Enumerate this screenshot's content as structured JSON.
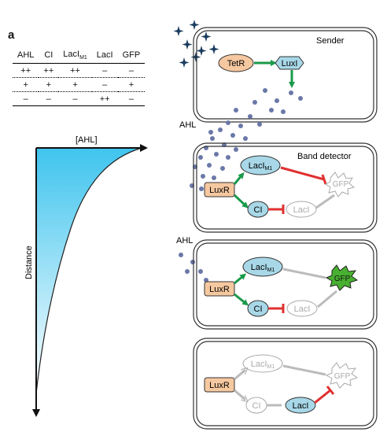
{
  "panel_label": "a",
  "truth_table": {
    "headers": [
      {
        "main": "AHL",
        "sub": ""
      },
      {
        "main": "CI",
        "sub": ""
      },
      {
        "main": "LacI",
        "sub": "M1"
      },
      {
        "main": "LacI",
        "sub": ""
      },
      {
        "main": "GFP",
        "sub": ""
      }
    ],
    "rows": [
      [
        "++",
        "++",
        "++",
        "–",
        "–"
      ],
      [
        "+",
        "+",
        "+",
        "–",
        "+"
      ],
      [
        "–",
        "–",
        "–",
        "++",
        "–"
      ]
    ]
  },
  "gradient_plot": {
    "x_label": "[AHL]",
    "y_label": "Distance",
    "fill_color": "#3fc4ee"
  },
  "cells": {
    "sender": {
      "title": "Sender",
      "tetr": "TetR",
      "luxi": "LuxI"
    },
    "band_detector": {
      "title": "Band detector",
      "laci_m1": "LacI",
      "laci_m1_sub": "M1",
      "luxr": "LuxR",
      "gfp": "GFP",
      "ci": "CI",
      "laci": "LacI"
    },
    "high_ahl": {
      "laci_m1": "LacI",
      "laci_m1_sub": "M1",
      "luxr": "LuxR",
      "gfp": "GFP",
      "ci": "CI",
      "laci": "LacI"
    },
    "no_ahl": {
      "laci_m1": "LacI",
      "laci_m1_sub": "M1",
      "luxr": "LuxR",
      "gfp": "GFP",
      "ci": "CI",
      "laci": "LacI"
    }
  },
  "ahl_labels": [
    "AHL",
    "AHL"
  ],
  "colors": {
    "activation": "#1a9a4a",
    "repression": "#e03030",
    "molecule": "#6a78a8",
    "star": "#1b3c5e",
    "luxr_fill": "#f6c8a0",
    "protein_fill": "#a8d8e8",
    "gfp_fill": "#48b030",
    "inactive": "#aaaaaa"
  }
}
